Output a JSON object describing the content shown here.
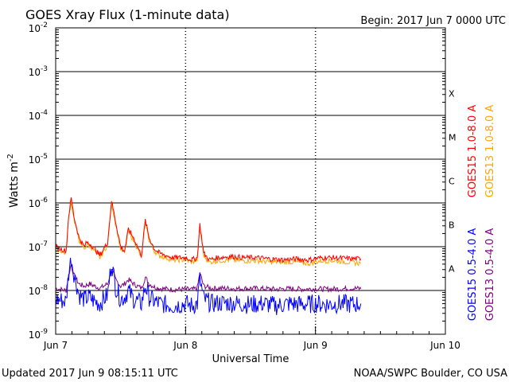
{
  "header": {
    "title": "GOES Xray Flux (1-minute data)",
    "begin": "Begin:  2017 Jun 7 0000 UTC"
  },
  "footer": {
    "updated": "Updated 2017 Jun  9 08:15:11 UTC",
    "credit": "NOAA/SWPC Boulder, CO USA"
  },
  "colors": {
    "goes15_long": "#ff0000",
    "goes13_long": "#ffa500",
    "goes15_short": "#0000ff",
    "goes13_short": "#800080",
    "flare_class_lines": "#000000"
  },
  "chart_data": {
    "type": "line",
    "title": "GOES Xray Flux (1-minute data)",
    "xlabel": "Universal Time",
    "ylabel": "Watts m-2",
    "y_scale": "log",
    "ylim": [
      1e-09,
      0.01
    ],
    "y_ticks": [
      {
        "base": "10",
        "exp": "-9"
      },
      {
        "base": "10",
        "exp": "-8"
      },
      {
        "base": "10",
        "exp": "-7"
      },
      {
        "base": "10",
        "exp": "-6"
      },
      {
        "base": "10",
        "exp": "-5"
      },
      {
        "base": "10",
        "exp": "-4"
      },
      {
        "base": "10",
        "exp": "-3"
      },
      {
        "base": "10",
        "exp": "-2"
      }
    ],
    "x_ticks": [
      "Jun 7",
      "Jun 8",
      "Jun 9",
      "Jun 10"
    ],
    "x_range_days": [
      0,
      3
    ],
    "flare_classes": [
      {
        "label": "A",
        "lower": -8
      },
      {
        "label": "B",
        "lower": -7
      },
      {
        "label": "C",
        "lower": -6
      },
      {
        "label": "M",
        "lower": -5
      },
      {
        "label": "X",
        "lower": -4
      }
    ],
    "grid": "horizontal lines at each decade, dotted verticals at day boundaries",
    "legend_position": "right, rotated vertical",
    "series": [
      {
        "name": "GOES15 1.0-8.0 A",
        "color": "#ff0000",
        "points": [
          [
            0.0,
            -7.0
          ],
          [
            0.08,
            -7.1
          ],
          [
            0.1,
            -6.3
          ],
          [
            0.12,
            -5.9
          ],
          [
            0.14,
            -6.3
          ],
          [
            0.18,
            -6.8
          ],
          [
            0.22,
            -7.0
          ],
          [
            0.24,
            -6.9
          ],
          [
            0.27,
            -6.95
          ],
          [
            0.3,
            -7.05
          ],
          [
            0.34,
            -7.2
          ],
          [
            0.4,
            -6.9
          ],
          [
            0.43,
            -5.95
          ],
          [
            0.46,
            -6.4
          ],
          [
            0.5,
            -7.0
          ],
          [
            0.53,
            -7.1
          ],
          [
            0.56,
            -6.6
          ],
          [
            0.6,
            -6.8
          ],
          [
            0.63,
            -7.0
          ],
          [
            0.66,
            -7.2
          ],
          [
            0.69,
            -6.4
          ],
          [
            0.72,
            -6.8
          ],
          [
            0.76,
            -7.05
          ],
          [
            0.8,
            -7.15
          ],
          [
            0.9,
            -7.25
          ],
          [
            1.0,
            -7.25
          ],
          [
            1.05,
            -7.3
          ],
          [
            1.09,
            -7.25
          ],
          [
            1.11,
            -6.5
          ],
          [
            1.14,
            -7.15
          ],
          [
            1.18,
            -7.3
          ],
          [
            1.25,
            -7.25
          ],
          [
            1.35,
            -7.22
          ],
          [
            1.45,
            -7.25
          ],
          [
            1.55,
            -7.25
          ],
          [
            1.65,
            -7.28
          ],
          [
            1.75,
            -7.3
          ],
          [
            1.85,
            -7.28
          ],
          [
            1.95,
            -7.3
          ],
          [
            2.05,
            -7.25
          ],
          [
            2.15,
            -7.25
          ],
          [
            2.25,
            -7.27
          ],
          [
            2.35,
            -7.28
          ]
        ]
      },
      {
        "name": "GOES13 1.0-8.0 A",
        "color": "#ffa500",
        "points": [
          [
            0.0,
            -7.05
          ],
          [
            0.08,
            -7.15
          ],
          [
            0.1,
            -6.35
          ],
          [
            0.12,
            -5.95
          ],
          [
            0.14,
            -6.35
          ],
          [
            0.18,
            -6.85
          ],
          [
            0.22,
            -7.05
          ],
          [
            0.24,
            -6.95
          ],
          [
            0.27,
            -7.0
          ],
          [
            0.3,
            -7.1
          ],
          [
            0.34,
            -7.25
          ],
          [
            0.4,
            -6.95
          ],
          [
            0.43,
            -6.0
          ],
          [
            0.46,
            -6.45
          ],
          [
            0.5,
            -7.05
          ],
          [
            0.53,
            -7.15
          ],
          [
            0.56,
            -6.65
          ],
          [
            0.6,
            -6.85
          ],
          [
            0.63,
            -7.05
          ],
          [
            0.66,
            -7.25
          ],
          [
            0.69,
            -6.45
          ],
          [
            0.72,
            -6.85
          ],
          [
            0.76,
            -7.1
          ],
          [
            0.8,
            -7.2
          ],
          [
            0.9,
            -7.3
          ],
          [
            1.0,
            -7.3
          ],
          [
            1.05,
            -7.35
          ],
          [
            1.09,
            -7.3
          ],
          [
            1.11,
            -6.55
          ],
          [
            1.14,
            -7.2
          ],
          [
            1.18,
            -7.35
          ],
          [
            1.25,
            -7.32
          ],
          [
            1.35,
            -7.3
          ],
          [
            1.45,
            -7.32
          ],
          [
            1.55,
            -7.32
          ],
          [
            1.65,
            -7.35
          ],
          [
            1.75,
            -7.35
          ],
          [
            1.85,
            -7.35
          ],
          [
            1.95,
            -7.38
          ],
          [
            2.05,
            -7.32
          ],
          [
            2.15,
            -7.32
          ],
          [
            2.25,
            -7.35
          ],
          [
            2.35,
            -7.38
          ]
        ]
      },
      {
        "name": "GOES15 0.5-4.0 A",
        "color": "#0000ff",
        "points": [
          [
            0.0,
            -8.2
          ],
          [
            0.08,
            -8.25
          ],
          [
            0.1,
            -7.6
          ],
          [
            0.12,
            -7.25
          ],
          [
            0.14,
            -7.6
          ],
          [
            0.18,
            -8.1
          ],
          [
            0.22,
            -8.2
          ],
          [
            0.26,
            -8.15
          ],
          [
            0.3,
            -8.25
          ],
          [
            0.34,
            -8.3
          ],
          [
            0.4,
            -8.1
          ],
          [
            0.43,
            -7.35
          ],
          [
            0.46,
            -7.9
          ],
          [
            0.5,
            -8.2
          ],
          [
            0.53,
            -8.15
          ],
          [
            0.56,
            -8.0
          ],
          [
            0.6,
            -8.2
          ],
          [
            0.63,
            -8.25
          ],
          [
            0.66,
            -8.3
          ],
          [
            0.69,
            -7.9
          ],
          [
            0.72,
            -8.15
          ],
          [
            0.76,
            -8.25
          ],
          [
            0.8,
            -8.3
          ],
          [
            0.9,
            -8.35
          ],
          [
            1.0,
            -8.3
          ],
          [
            1.05,
            -8.35
          ],
          [
            1.09,
            -8.3
          ],
          [
            1.11,
            -7.75
          ],
          [
            1.14,
            -8.2
          ],
          [
            1.2,
            -8.3
          ],
          [
            1.3,
            -8.28
          ],
          [
            1.4,
            -8.3
          ],
          [
            1.5,
            -8.32
          ],
          [
            1.6,
            -8.3
          ],
          [
            1.7,
            -8.35
          ],
          [
            1.8,
            -8.3
          ],
          [
            1.9,
            -8.32
          ],
          [
            2.0,
            -8.3
          ],
          [
            2.1,
            -8.32
          ],
          [
            2.2,
            -8.3
          ],
          [
            2.3,
            -8.32
          ],
          [
            2.35,
            -8.3
          ]
        ]
      },
      {
        "name": "GOES13 0.5-4.0 A",
        "color": "#800080",
        "points": [
          [
            0.0,
            -7.95
          ],
          [
            0.08,
            -8.0
          ],
          [
            0.1,
            -7.65
          ],
          [
            0.12,
            -7.4
          ],
          [
            0.14,
            -7.65
          ],
          [
            0.18,
            -7.85
          ],
          [
            0.22,
            -7.9
          ],
          [
            0.26,
            -7.85
          ],
          [
            0.3,
            -7.9
          ],
          [
            0.34,
            -7.95
          ],
          [
            0.4,
            -7.85
          ],
          [
            0.43,
            -7.5
          ],
          [
            0.46,
            -7.75
          ],
          [
            0.5,
            -7.9
          ],
          [
            0.53,
            -7.85
          ],
          [
            0.56,
            -7.75
          ],
          [
            0.6,
            -7.85
          ],
          [
            0.63,
            -7.9
          ],
          [
            0.66,
            -7.95
          ],
          [
            0.69,
            -7.7
          ],
          [
            0.72,
            -7.85
          ],
          [
            0.76,
            -7.92
          ],
          [
            0.8,
            -7.95
          ],
          [
            0.9,
            -7.98
          ],
          [
            1.0,
            -7.97
          ],
          [
            1.05,
            -7.98
          ],
          [
            1.09,
            -7.95
          ],
          [
            1.11,
            -7.6
          ],
          [
            1.14,
            -7.9
          ],
          [
            1.2,
            -7.95
          ],
          [
            1.3,
            -7.95
          ],
          [
            1.4,
            -7.96
          ],
          [
            1.5,
            -7.95
          ],
          [
            1.6,
            -7.96
          ],
          [
            1.7,
            -7.97
          ],
          [
            1.8,
            -7.96
          ],
          [
            1.9,
            -7.97
          ],
          [
            2.0,
            -7.96
          ],
          [
            2.1,
            -7.97
          ],
          [
            2.2,
            -7.96
          ],
          [
            2.3,
            -7.95
          ],
          [
            2.35,
            -7.96
          ]
        ]
      }
    ]
  }
}
